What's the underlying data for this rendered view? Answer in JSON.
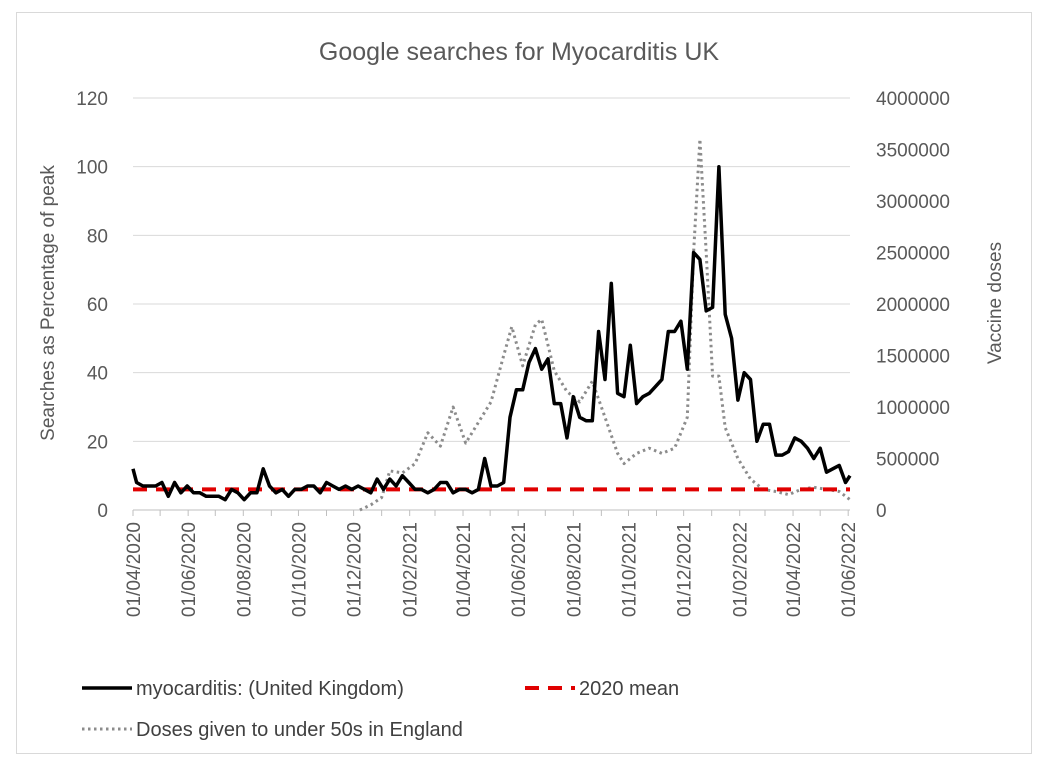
{
  "chart_data": {
    "type": "line",
    "title": "Google searches for Myocarditis UK",
    "ylabel": "Searches as Percentage of peak",
    "y2label": "Vaccine doses",
    "ylim": [
      0,
      120
    ],
    "y2lim": [
      0,
      4000000
    ],
    "y_ticks": [
      "0",
      "20",
      "40",
      "60",
      "80",
      "100",
      "120"
    ],
    "y2_ticks": [
      "0",
      "500000",
      "1000000",
      "1500000",
      "2000000",
      "2500000",
      "3000000",
      "3500000",
      "4000000"
    ],
    "x_ticks": [
      "01/04/2020",
      "01/06/2020",
      "01/08/2020",
      "01/10/2020",
      "01/12/2020",
      "01/02/2021",
      "01/04/2021",
      "01/06/2021",
      "01/08/2021",
      "01/10/2021",
      "01/12/2021",
      "01/02/2022",
      "01/04/2022",
      "01/06/2022"
    ],
    "grid": true,
    "legend_position": "bottom",
    "series": [
      {
        "name": "myocarditis: (United Kingdom)",
        "axis": "left",
        "color": "#000000",
        "style": "solid",
        "points": [
          [
            "2020-04-01",
            12
          ],
          [
            "2020-04-05",
            8
          ],
          [
            "2020-04-12",
            7
          ],
          [
            "2020-04-19",
            7
          ],
          [
            "2020-04-26",
            7
          ],
          [
            "2020-05-03",
            8
          ],
          [
            "2020-05-10",
            4
          ],
          [
            "2020-05-17",
            8
          ],
          [
            "2020-05-24",
            5
          ],
          [
            "2020-05-31",
            7
          ],
          [
            "2020-06-07",
            5
          ],
          [
            "2020-06-14",
            5
          ],
          [
            "2020-06-21",
            4
          ],
          [
            "2020-06-28",
            4
          ],
          [
            "2020-07-05",
            4
          ],
          [
            "2020-07-12",
            3
          ],
          [
            "2020-07-19",
            6
          ],
          [
            "2020-07-26",
            5
          ],
          [
            "2020-08-02",
            3
          ],
          [
            "2020-08-09",
            5
          ],
          [
            "2020-08-16",
            5
          ],
          [
            "2020-08-23",
            12
          ],
          [
            "2020-08-30",
            7
          ],
          [
            "2020-09-06",
            5
          ],
          [
            "2020-09-13",
            6
          ],
          [
            "2020-09-20",
            4
          ],
          [
            "2020-09-27",
            6
          ],
          [
            "2020-10-04",
            6
          ],
          [
            "2020-10-11",
            7
          ],
          [
            "2020-10-18",
            7
          ],
          [
            "2020-10-25",
            5
          ],
          [
            "2020-11-01",
            8
          ],
          [
            "2020-11-08",
            7
          ],
          [
            "2020-11-15",
            6
          ],
          [
            "2020-11-22",
            7
          ],
          [
            "2020-11-29",
            6
          ],
          [
            "2020-12-06",
            7
          ],
          [
            "2020-12-13",
            6
          ],
          [
            "2020-12-20",
            5
          ],
          [
            "2020-12-27",
            9
          ],
          [
            "2021-01-03",
            6
          ],
          [
            "2021-01-10",
            9
          ],
          [
            "2021-01-17",
            7
          ],
          [
            "2021-01-24",
            10
          ],
          [
            "2021-01-31",
            8
          ],
          [
            "2021-02-07",
            6
          ],
          [
            "2021-02-14",
            6
          ],
          [
            "2021-02-21",
            5
          ],
          [
            "2021-02-28",
            6
          ],
          [
            "2021-03-07",
            8
          ],
          [
            "2021-03-14",
            8
          ],
          [
            "2021-03-21",
            5
          ],
          [
            "2021-03-28",
            6
          ],
          [
            "2021-04-04",
            6
          ],
          [
            "2021-04-11",
            5
          ],
          [
            "2021-04-18",
            6
          ],
          [
            "2021-04-25",
            15
          ],
          [
            "2021-05-02",
            7
          ],
          [
            "2021-05-09",
            7
          ],
          [
            "2021-05-16",
            8
          ],
          [
            "2021-05-23",
            27
          ],
          [
            "2021-05-30",
            35
          ],
          [
            "2021-06-06",
            35
          ],
          [
            "2021-06-13",
            43
          ],
          [
            "2021-06-20",
            47
          ],
          [
            "2021-06-27",
            41
          ],
          [
            "2021-07-04",
            44
          ],
          [
            "2021-07-11",
            31
          ],
          [
            "2021-07-18",
            31
          ],
          [
            "2021-07-25",
            21
          ],
          [
            "2021-08-01",
            33
          ],
          [
            "2021-08-08",
            27
          ],
          [
            "2021-08-15",
            26
          ],
          [
            "2021-08-22",
            26
          ],
          [
            "2021-08-29",
            52
          ],
          [
            "2021-09-05",
            38
          ],
          [
            "2021-09-12",
            66
          ],
          [
            "2021-09-19",
            34
          ],
          [
            "2021-09-26",
            33
          ],
          [
            "2021-10-03",
            48
          ],
          [
            "2021-10-10",
            31
          ],
          [
            "2021-10-17",
            33
          ],
          [
            "2021-10-24",
            34
          ],
          [
            "2021-10-31",
            36
          ],
          [
            "2021-11-07",
            38
          ],
          [
            "2021-11-14",
            52
          ],
          [
            "2021-11-21",
            52
          ],
          [
            "2021-11-28",
            55
          ],
          [
            "2021-12-05",
            41
          ],
          [
            "2021-12-12",
            75
          ],
          [
            "2021-12-19",
            73
          ],
          [
            "2021-12-26",
            58
          ],
          [
            "2022-01-02",
            59
          ],
          [
            "2022-01-09",
            100
          ],
          [
            "2022-01-16",
            57
          ],
          [
            "2022-01-23",
            50
          ],
          [
            "2022-01-30",
            32
          ],
          [
            "2022-02-06",
            40
          ],
          [
            "2022-02-13",
            38
          ],
          [
            "2022-02-20",
            20
          ],
          [
            "2022-02-27",
            25
          ],
          [
            "2022-03-06",
            25
          ],
          [
            "2022-03-13",
            16
          ],
          [
            "2022-03-20",
            16
          ],
          [
            "2022-03-27",
            17
          ],
          [
            "2022-04-03",
            21
          ],
          [
            "2022-04-10",
            20
          ],
          [
            "2022-04-17",
            18
          ],
          [
            "2022-04-24",
            15
          ],
          [
            "2022-05-01",
            18
          ],
          [
            "2022-05-08",
            11
          ],
          [
            "2022-05-15",
            12
          ],
          [
            "2022-05-22",
            13
          ],
          [
            "2022-05-29",
            8
          ],
          [
            "2022-06-03",
            10
          ]
        ]
      },
      {
        "name": "2020 mean",
        "axis": "left",
        "color": "#e00000",
        "style": "dashed",
        "points": [
          [
            "2020-04-01",
            6
          ],
          [
            "2022-06-03",
            6
          ]
        ]
      },
      {
        "name": "Doses given to under 50s in England",
        "axis": "right",
        "color": "#8c8c8c",
        "style": "dotted",
        "points": [
          [
            "2020-12-08",
            0
          ],
          [
            "2020-12-20",
            50000
          ],
          [
            "2021-01-01",
            120000
          ],
          [
            "2021-01-10",
            380000
          ],
          [
            "2021-01-24",
            360000
          ],
          [
            "2021-02-07",
            450000
          ],
          [
            "2021-02-21",
            750000
          ],
          [
            "2021-03-07",
            620000
          ],
          [
            "2021-03-21",
            1000000
          ],
          [
            "2021-04-04",
            650000
          ],
          [
            "2021-04-18",
            850000
          ],
          [
            "2021-05-02",
            1050000
          ],
          [
            "2021-05-16",
            1500000
          ],
          [
            "2021-05-25",
            1780000
          ],
          [
            "2021-06-06",
            1400000
          ],
          [
            "2021-06-20",
            1800000
          ],
          [
            "2021-06-27",
            1850000
          ],
          [
            "2021-07-11",
            1350000
          ],
          [
            "2021-07-25",
            1150000
          ],
          [
            "2021-08-08",
            1050000
          ],
          [
            "2021-08-22",
            1250000
          ],
          [
            "2021-09-05",
            900000
          ],
          [
            "2021-09-19",
            550000
          ],
          [
            "2021-09-26",
            450000
          ],
          [
            "2021-10-10",
            550000
          ],
          [
            "2021-10-24",
            600000
          ],
          [
            "2021-11-07",
            550000
          ],
          [
            "2021-11-21",
            600000
          ],
          [
            "2021-12-05",
            900000
          ],
          [
            "2021-12-12",
            2500000
          ],
          [
            "2021-12-19",
            3600000
          ],
          [
            "2021-12-26",
            2500000
          ],
          [
            "2022-01-02",
            1300000
          ],
          [
            "2022-01-09",
            1300000
          ],
          [
            "2022-01-16",
            800000
          ],
          [
            "2022-01-30",
            500000
          ],
          [
            "2022-02-13",
            300000
          ],
          [
            "2022-02-27",
            200000
          ],
          [
            "2022-03-13",
            180000
          ],
          [
            "2022-03-27",
            150000
          ],
          [
            "2022-04-10",
            200000
          ],
          [
            "2022-04-24",
            220000
          ],
          [
            "2022-05-08",
            200000
          ],
          [
            "2022-05-22",
            180000
          ],
          [
            "2022-06-03",
            100000
          ]
        ]
      }
    ]
  }
}
